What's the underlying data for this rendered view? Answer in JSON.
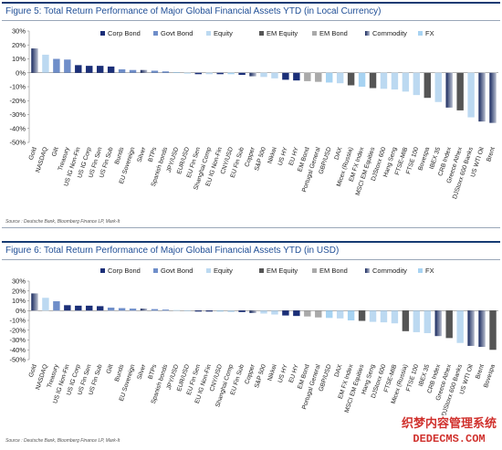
{
  "figures": [
    {
      "title": "Figure 5: Total Return Performance of Major Global Financial Assets YTD (in Local Currency)",
      "source": "Source : Deutsche Bank, Bloomberg Finance LP, Mark-It"
    },
    {
      "title": "Figure 6: Total Return Performance of Major Global Financial Assets YTD (in USD)",
      "source": "Source : Deutsche Bank, Bloomberg Finance LP, Mark-It"
    }
  ],
  "watermark": {
    "line1": "织梦内容管理系统",
    "line2": "DEDECMS.COM"
  },
  "colors": {
    "corp_bond": "#1b2f78",
    "govt_bond": "#6f8ec9",
    "equity": "#bcd9f1",
    "em_equity": "#555555",
    "em_bond": "#a9a9a9",
    "commodity": "#17285e",
    "fx": "#a7d3f2"
  },
  "chart_data": [
    {
      "type": "bar",
      "ylim": [
        -50,
        30
      ],
      "yticks": [
        "30%",
        "20%",
        "10%",
        "0%",
        "-10%",
        "-20%",
        "-30%",
        "-40%",
        "-50%"
      ],
      "legend": [
        {
          "key": "corp_bond",
          "label": "Corp Bond"
        },
        {
          "key": "govt_bond",
          "label": "Govt Bond"
        },
        {
          "key": "equity",
          "label": "Equity"
        },
        {
          "key": "em_equity",
          "label": "EM Equity"
        },
        {
          "key": "em_bond",
          "label": "EM Bond"
        },
        {
          "key": "commodity",
          "label": "Commodity"
        },
        {
          "key": "fx",
          "label": "FX"
        }
      ],
      "legend_placement": "top",
      "categories": [
        "Gold",
        "NASDAQ",
        "Gilt",
        "Treasury",
        "US IG Non-Fin",
        "US IG Corp",
        "US Fin Sen",
        "US Fin Sub",
        "Bunds",
        "EU Sovereign",
        "Silver",
        "BTPs",
        "Spanish bonds",
        "JPY/USD",
        "EUR/USD",
        "EU Fin Sen",
        "Shanghai Comp",
        "EU IG Non-Fin",
        "CNY/USD",
        "EU Fin Sub",
        "Copper",
        "S&P 500",
        "Nikkei",
        "US HY",
        "EU HY",
        "EM Bond",
        "Portugal General",
        "GBP/USD",
        "DAX",
        "Micex (Russia)",
        "EM FX Index",
        "MSCI EM Equities",
        "DJStoxx 600",
        "Hang Seng",
        "FTSE-MIB",
        "FTSE 100",
        "Bovespa",
        "IBEX 35",
        "CRB Index",
        "Greece Athex",
        "DJStoxx 600 Banks",
        "US WTI Oil",
        "Brent"
      ],
      "values": [
        17.5,
        13,
        10,
        9.5,
        5.5,
        5,
        5,
        4.5,
        2.5,
        2,
        2,
        1.5,
        1,
        0.5,
        -0.5,
        -1,
        -1,
        -1,
        -1,
        -1.5,
        -2.5,
        -3,
        -4,
        -5,
        -5.5,
        -6,
        -6.5,
        -7,
        -7.5,
        -9,
        -10,
        -11,
        -11.5,
        -12,
        -13.5,
        -16,
        -18,
        -21,
        -25,
        -27,
        -32,
        -35,
        -36
      ],
      "series_keys": [
        "commodity",
        "equity",
        "govt_bond",
        "govt_bond",
        "corp_bond",
        "corp_bond",
        "corp_bond",
        "corp_bond",
        "govt_bond",
        "govt_bond",
        "commodity",
        "govt_bond",
        "govt_bond",
        "fx",
        "fx",
        "corp_bond",
        "equity",
        "corp_bond",
        "fx",
        "corp_bond",
        "commodity",
        "equity",
        "equity",
        "corp_bond",
        "corp_bond",
        "em_bond",
        "em_bond",
        "fx",
        "equity",
        "em_equity",
        "fx",
        "em_equity",
        "equity",
        "equity",
        "equity",
        "equity",
        "em_equity",
        "equity",
        "commodity",
        "em_equity",
        "equity",
        "commodity",
        "commodity"
      ]
    },
    {
      "type": "bar",
      "ylim": [
        -50,
        30
      ],
      "yticks": [
        "30%",
        "20%",
        "10%",
        "0%",
        "-10%",
        "-20%",
        "-30%",
        "-40%",
        "-50%"
      ],
      "legend": [
        {
          "key": "corp_bond",
          "label": "Corp Bond"
        },
        {
          "key": "govt_bond",
          "label": "Govt Bond"
        },
        {
          "key": "equity",
          "label": "Equity"
        },
        {
          "key": "em_equity",
          "label": "EM Equity"
        },
        {
          "key": "em_bond",
          "label": "EM Bond"
        },
        {
          "key": "commodity",
          "label": "Commodity"
        },
        {
          "key": "fx",
          "label": "FX"
        }
      ],
      "legend_placement": "top",
      "categories": [
        "Gold",
        "NASDAQ",
        "Treasury",
        "US IG Non-Fin",
        "US IG Corp",
        "US Fin Sen",
        "US Fin Sub",
        "Gilt",
        "Bunds",
        "EU Sovereign",
        "Silver",
        "BTPs",
        "Spanish bonds",
        "JPY/USD",
        "EUR/USD",
        "EU Fin Sen",
        "EU IG Non-Fin",
        "CNY/USD",
        "Shanghai Comp",
        "EU Fin Sub",
        "Copper",
        "S&P 500",
        "Nikkei",
        "US HY",
        "EU HY",
        "EM Bond",
        "Portugal General",
        "GBP/USD",
        "DAX",
        "EM FX Index",
        "MSCI EM Equities",
        "Hang Seng",
        "DJStoxx 600",
        "FTSE-MIB",
        "Micex (Russia)",
        "FTSE 100",
        "IBEX 35",
        "CRB Index",
        "Greece Athex",
        "DJStoxx 600 Banks",
        "US WTI Oil",
        "Brent",
        "Bovespa"
      ],
      "values": [
        17.5,
        13,
        9.5,
        5.5,
        5,
        5,
        4.5,
        3,
        2.5,
        2,
        2,
        1.5,
        1,
        0.5,
        -0.5,
        -1,
        -1,
        -1,
        -1.5,
        -1.5,
        -2.5,
        -3,
        -4,
        -5,
        -5.5,
        -6,
        -7,
        -7.5,
        -8,
        -10,
        -10.5,
        -11.5,
        -12,
        -13,
        -21,
        -22,
        -23,
        -26,
        -28,
        -33,
        -36,
        -37,
        -40
      ],
      "series_keys": [
        "commodity",
        "equity",
        "govt_bond",
        "corp_bond",
        "corp_bond",
        "corp_bond",
        "corp_bond",
        "govt_bond",
        "govt_bond",
        "govt_bond",
        "commodity",
        "govt_bond",
        "govt_bond",
        "fx",
        "fx",
        "corp_bond",
        "corp_bond",
        "fx",
        "equity",
        "corp_bond",
        "commodity",
        "equity",
        "equity",
        "corp_bond",
        "corp_bond",
        "em_bond",
        "em_bond",
        "fx",
        "equity",
        "fx",
        "em_equity",
        "equity",
        "equity",
        "equity",
        "em_equity",
        "equity",
        "equity",
        "commodity",
        "em_equity",
        "equity",
        "commodity",
        "commodity",
        "em_equity"
      ]
    }
  ]
}
